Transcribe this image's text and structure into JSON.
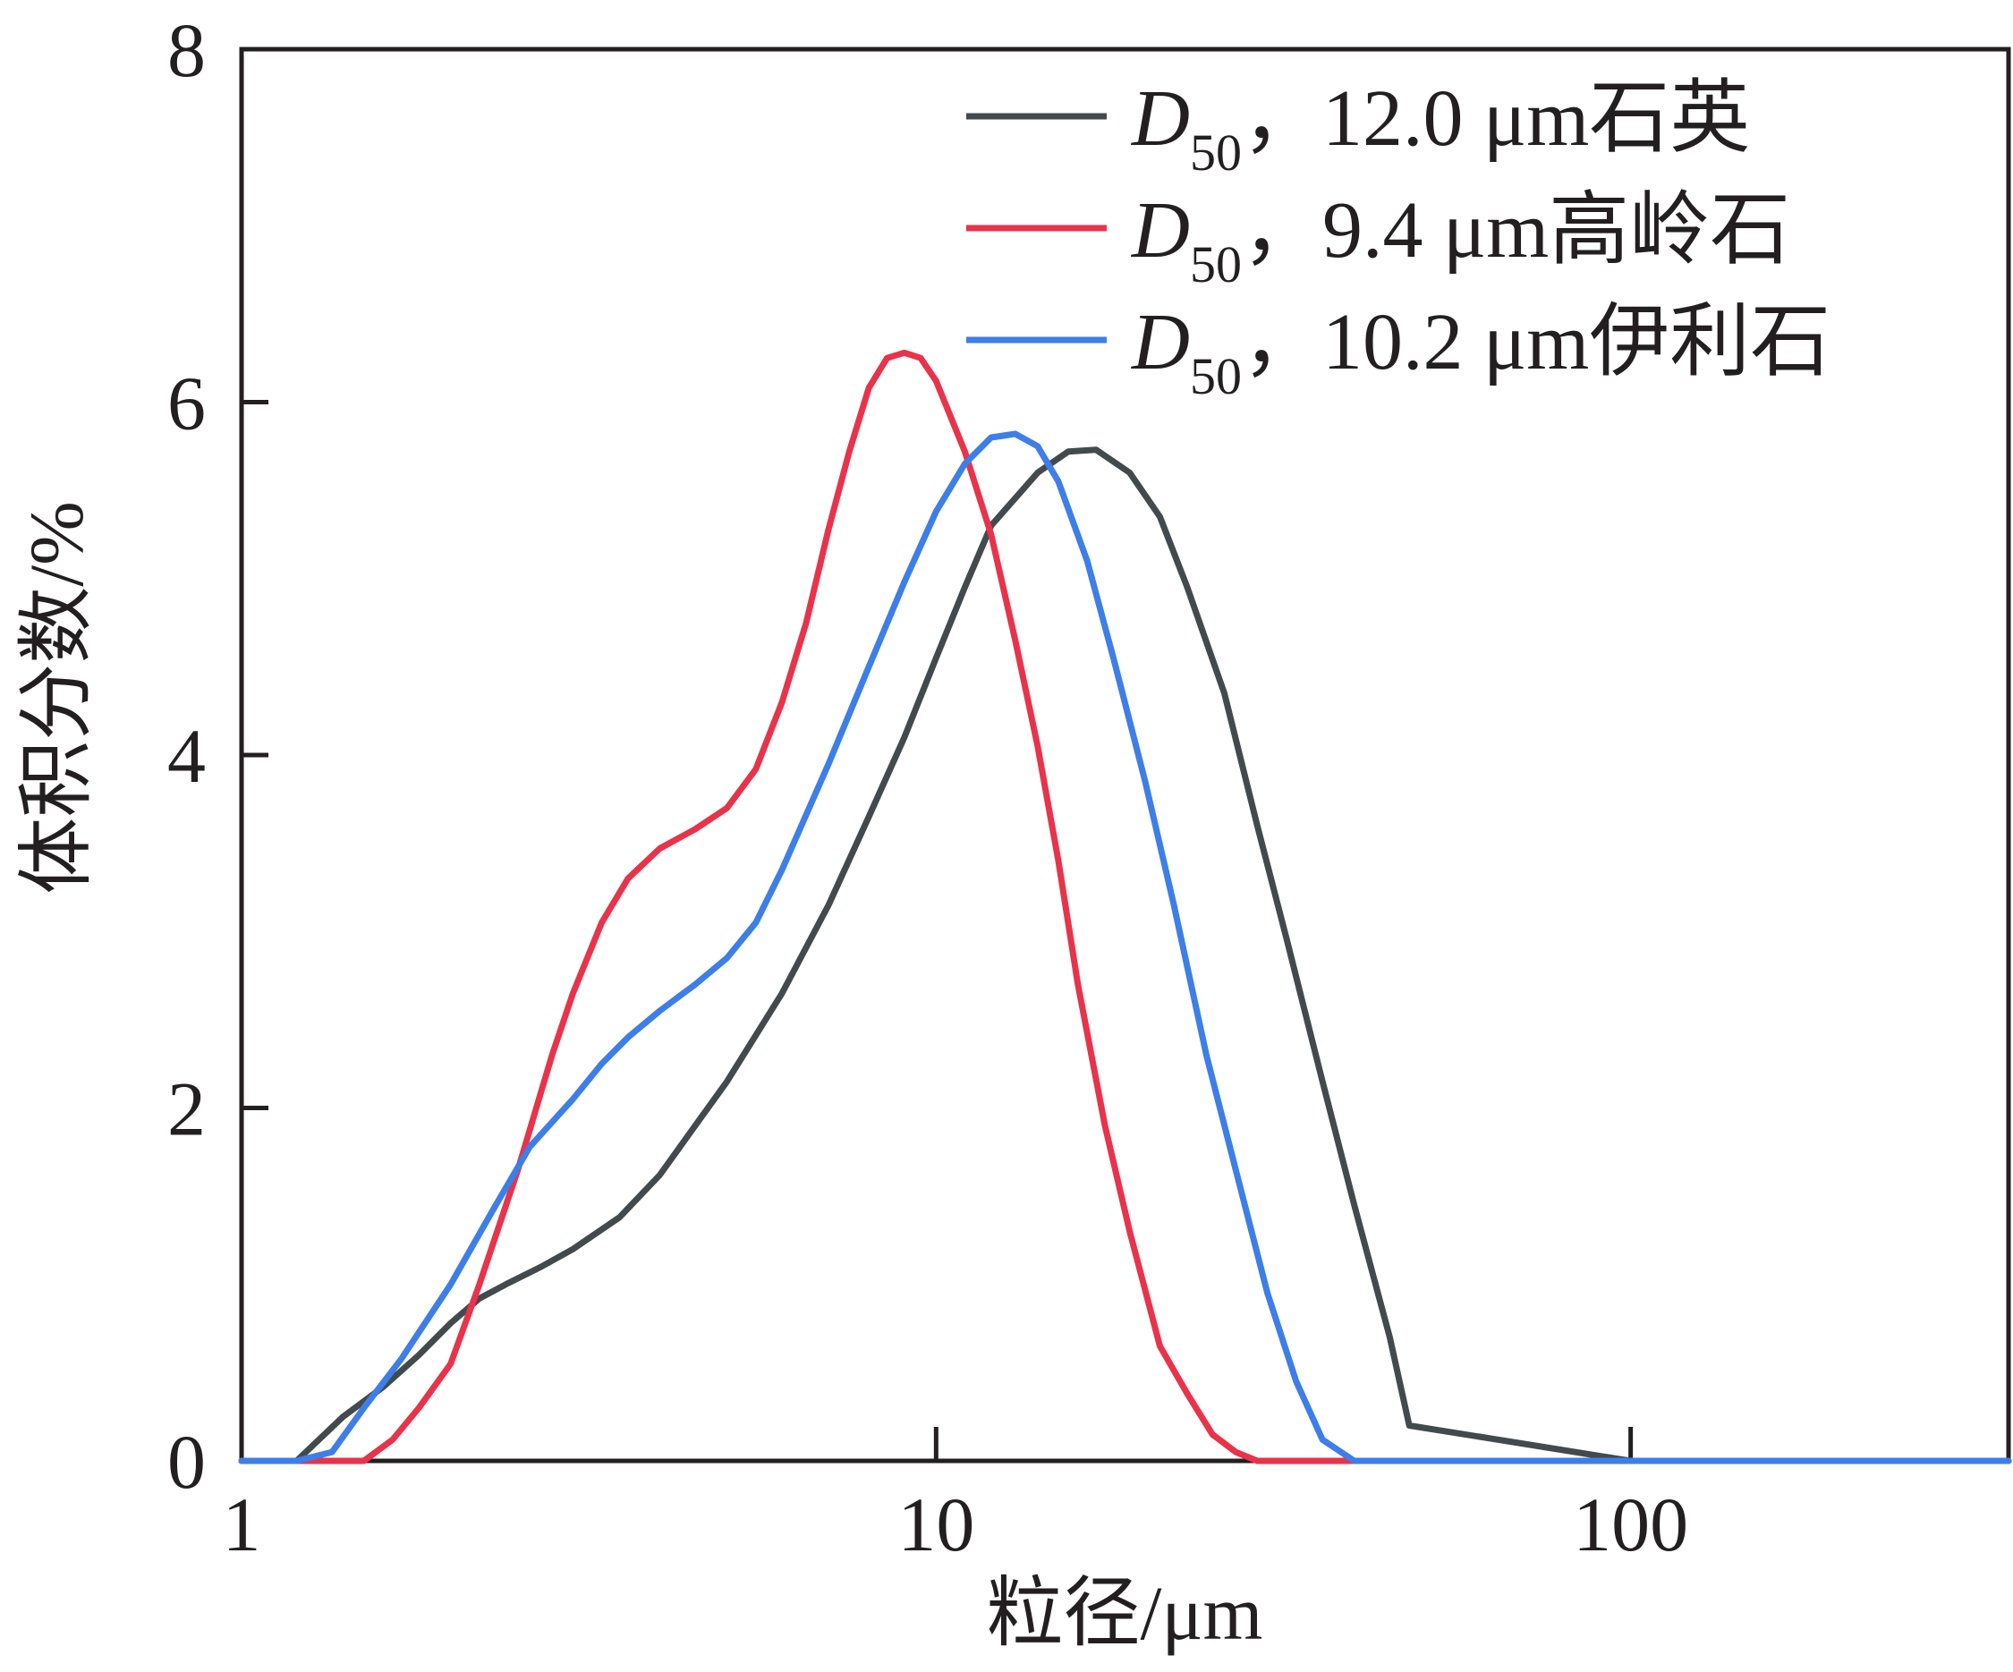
{
  "chart_data": {
    "type": "line",
    "xscale": "log",
    "xlim": [
      1,
      350
    ],
    "ylim": [
      0,
      8
    ],
    "xticks": [
      1,
      10,
      100
    ],
    "yticks": [
      0,
      2,
      4,
      6,
      8
    ],
    "xlabel": "粒径/μm",
    "ylabel": "体积分数/%",
    "legend_position": "top-right",
    "series": [
      {
        "name": "D50，12.0 μm石英",
        "legend_prefix": "D",
        "legend_sub": "50",
        "legend_rest": "，12.0 μm石英",
        "color": "#424a4d",
        "x": [
          1.0,
          1.2,
          1.4,
          1.6,
          1.8,
          2.0,
          2.2,
          2.4,
          2.7,
          3.0,
          3.5,
          4.0,
          4.5,
          5.0,
          6.0,
          7.0,
          8.0,
          9.0,
          10.0,
          11.0,
          12.0,
          14.0,
          15.5,
          17.0,
          19.0,
          21.0,
          23.0,
          26.0,
          29.0,
          32.0,
          36.0,
          40.0,
          45.0,
          48.0,
          100.0,
          350.0
        ],
        "y": [
          0,
          0,
          0.25,
          0.42,
          0.6,
          0.78,
          0.92,
          1.0,
          1.1,
          1.2,
          1.38,
          1.62,
          1.9,
          2.15,
          2.65,
          3.15,
          3.65,
          4.1,
          4.55,
          4.95,
          5.3,
          5.6,
          5.72,
          5.73,
          5.6,
          5.35,
          4.95,
          4.35,
          3.6,
          2.95,
          2.15,
          1.45,
          0.7,
          0.2,
          0,
          0
        ]
      },
      {
        "name": "D50，9.4 μm高岭石",
        "legend_prefix": "D",
        "legend_sub": "50",
        "legend_rest": "，9.4 μm高岭石",
        "color": "#e8334a",
        "x": [
          1.0,
          1.3,
          1.5,
          1.65,
          1.8,
          2.0,
          2.2,
          2.5,
          2.8,
          3.0,
          3.3,
          3.6,
          4.0,
          4.5,
          5.0,
          5.5,
          6.0,
          6.5,
          7.0,
          7.5,
          8.0,
          8.5,
          9.0,
          9.5,
          10.0,
          11.0,
          12.0,
          13.0,
          14.0,
          15.0,
          16.0,
          17.5,
          19.0,
          21.0,
          23.0,
          25.0,
          27.0,
          29.0,
          31.0,
          100.0,
          350.0
        ],
        "y": [
          0,
          0,
          0,
          0.12,
          0.3,
          0.55,
          1.0,
          1.65,
          2.3,
          2.65,
          3.05,
          3.3,
          3.47,
          3.58,
          3.7,
          3.92,
          4.3,
          4.75,
          5.28,
          5.72,
          6.08,
          6.25,
          6.28,
          6.25,
          6.12,
          5.72,
          5.25,
          4.65,
          4.05,
          3.4,
          2.7,
          1.9,
          1.3,
          0.65,
          0.38,
          0.15,
          0.05,
          0,
          0,
          0,
          0
        ]
      },
      {
        "name": "D50，10.2 μm伊利石",
        "legend_prefix": "D",
        "legend_sub": "50",
        "legend_rest": "，10.2 μm伊利石",
        "color": "#3d7ee8",
        "x": [
          1.0,
          1.2,
          1.35,
          1.5,
          1.7,
          2.0,
          2.3,
          2.6,
          3.0,
          3.3,
          3.6,
          4.0,
          4.5,
          5.0,
          5.5,
          6.0,
          7.0,
          8.0,
          9.0,
          10.0,
          11.0,
          12.0,
          13.0,
          14.0,
          15.0,
          16.5,
          18.0,
          20.0,
          22.0,
          24.5,
          27.0,
          30.0,
          33.0,
          36.0,
          40.0,
          100.0,
          350.0
        ],
        "y": [
          0,
          0,
          0.05,
          0.3,
          0.58,
          1.0,
          1.42,
          1.78,
          2.05,
          2.25,
          2.4,
          2.55,
          2.7,
          2.85,
          3.05,
          3.35,
          3.95,
          4.5,
          4.98,
          5.38,
          5.65,
          5.8,
          5.82,
          5.75,
          5.55,
          5.1,
          4.55,
          3.85,
          3.15,
          2.3,
          1.65,
          0.95,
          0.45,
          0.12,
          0,
          0,
          0
        ]
      }
    ]
  }
}
